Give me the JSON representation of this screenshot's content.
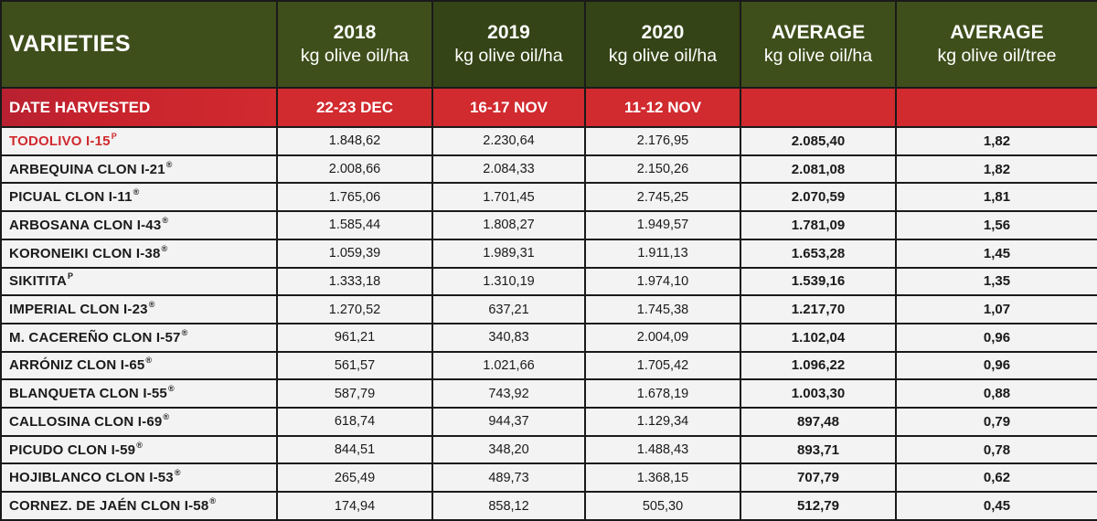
{
  "header": {
    "varieties_label": "VARIETIES",
    "columns": [
      {
        "title": "2018",
        "unit": "kg olive oil/ha"
      },
      {
        "title": "2019",
        "unit": "kg olive oil/ha"
      },
      {
        "title": "2020",
        "unit": "kg olive oil/ha"
      },
      {
        "title": "AVERAGE",
        "unit": "kg olive oil/ha"
      },
      {
        "title": "AVERAGE",
        "unit": "kg olive oil/tree"
      }
    ]
  },
  "harvest": {
    "label": "DATE HARVESTED",
    "dates": [
      "22-23 DEC",
      "16-17 NOV",
      "11-12 NOV",
      "",
      ""
    ]
  },
  "colors": {
    "header_bg": "#3f4f1b",
    "accent_red": "#d12a2f",
    "row_bg": "#f3f3f3"
  },
  "rows": [
    {
      "name": "TODOLIVO I-15",
      "mark": "P",
      "featured": true,
      "v2018": "1.848,62",
      "v2019": "2.230,64",
      "v2020": "2.176,95",
      "avg_ha": "2.085,40",
      "avg_tree": "1,82"
    },
    {
      "name": "ARBEQUINA CLON I-21",
      "mark": "®",
      "featured": false,
      "v2018": "2.008,66",
      "v2019": "2.084,33",
      "v2020": "2.150,26",
      "avg_ha": "2.081,08",
      "avg_tree": "1,82"
    },
    {
      "name": "PICUAL CLON I-11",
      "mark": "®",
      "featured": false,
      "v2018": "1.765,06",
      "v2019": "1.701,45",
      "v2020": "2.745,25",
      "avg_ha": "2.070,59",
      "avg_tree": "1,81"
    },
    {
      "name": "ARBOSANA CLON I-43",
      "mark": "®",
      "featured": false,
      "v2018": "1.585,44",
      "v2019": "1.808,27",
      "v2020": "1.949,57",
      "avg_ha": "1.781,09",
      "avg_tree": "1,56"
    },
    {
      "name": "KORONEIKI CLON I-38",
      "mark": "®",
      "featured": false,
      "v2018": "1.059,39",
      "v2019": "1.989,31",
      "v2020": "1.911,13",
      "avg_ha": "1.653,28",
      "avg_tree": "1,45"
    },
    {
      "name": "SIKITITA",
      "mark": "P",
      "featured": false,
      "v2018": "1.333,18",
      "v2019": "1.310,19",
      "v2020": "1.974,10",
      "avg_ha": "1.539,16",
      "avg_tree": "1,35"
    },
    {
      "name": "IMPERIAL CLON I-23",
      "mark": "®",
      "featured": false,
      "v2018": "1.270,52",
      "v2019": "637,21",
      "v2020": "1.745,38",
      "avg_ha": "1.217,70",
      "avg_tree": "1,07"
    },
    {
      "name": "M. CACEREÑO CLON I-57",
      "mark": "®",
      "featured": false,
      "v2018": "961,21",
      "v2019": "340,83",
      "v2020": "2.004,09",
      "avg_ha": "1.102,04",
      "avg_tree": "0,96"
    },
    {
      "name": "ARRÓNIZ CLON I-65",
      "mark": "®",
      "featured": false,
      "v2018": "561,57",
      "v2019": "1.021,66",
      "v2020": "1.705,42",
      "avg_ha": "1.096,22",
      "avg_tree": "0,96"
    },
    {
      "name": "BLANQUETA CLON I-55",
      "mark": "®",
      "featured": false,
      "v2018": "587,79",
      "v2019": "743,92",
      "v2020": "1.678,19",
      "avg_ha": "1.003,30",
      "avg_tree": "0,88"
    },
    {
      "name": "CALLOSINA CLON I-69",
      "mark": "®",
      "featured": false,
      "v2018": "618,74",
      "v2019": "944,37",
      "v2020": "1.129,34",
      "avg_ha": "897,48",
      "avg_tree": "0,79"
    },
    {
      "name": "PICUDO CLON I-59",
      "mark": "®",
      "featured": false,
      "v2018": "844,51",
      "v2019": "348,20",
      "v2020": "1.488,43",
      "avg_ha": "893,71",
      "avg_tree": "0,78"
    },
    {
      "name": "HOJIBLANCO CLON I-53",
      "mark": "®",
      "featured": false,
      "v2018": "265,49",
      "v2019": "489,73",
      "v2020": "1.368,15",
      "avg_ha": "707,79",
      "avg_tree": "0,62"
    },
    {
      "name": "CORNEZ. DE JAÉN CLON I-58",
      "mark": "®",
      "featured": false,
      "v2018": "174,94",
      "v2019": "858,12",
      "v2020": "505,30",
      "avg_ha": "512,79",
      "avg_tree": "0,45"
    }
  ]
}
